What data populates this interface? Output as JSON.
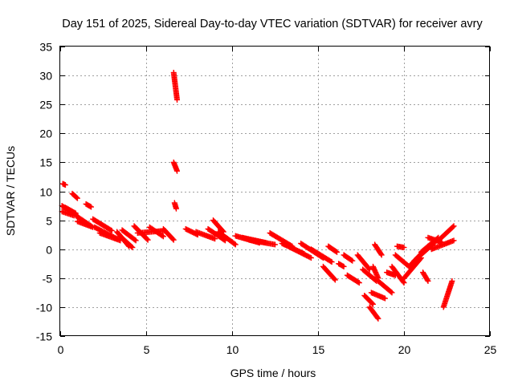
{
  "chart_data": {
    "type": "scatter",
    "title": "Day 151 of 2025, Sidereal Day-to-day VTEC variation (SDTVAR) for receiver avry",
    "xlabel": "GPS time / hours",
    "ylabel": "SDTVAR / TECUs",
    "xlim": [
      0,
      25
    ],
    "ylim": [
      -15,
      35
    ],
    "xticks": [
      "0",
      "5",
      "10",
      "15",
      "20",
      "25"
    ],
    "xtick_values": [
      0,
      5,
      10,
      15,
      20,
      25
    ],
    "yticks": [
      "-15",
      "-10",
      "-5",
      "0",
      "5",
      "10",
      "15",
      "20",
      "25",
      "30",
      "35"
    ],
    "ytick_values": [
      -15,
      -10,
      -5,
      0,
      5,
      10,
      15,
      20,
      25,
      30,
      35
    ],
    "grid": true,
    "marker": "+",
    "color": "#ff0000",
    "series": [
      {
        "name": "SDTVAR",
        "segments": [
          {
            "x": [
              0.1,
              0.9
            ],
            "y": [
              7.5,
              6.0
            ]
          },
          {
            "x": [
              0.1,
              0.8
            ],
            "y": [
              6.5,
              5.8
            ]
          },
          {
            "x": [
              0.3,
              0.9
            ],
            "y": [
              7.2,
              6.2
            ]
          },
          {
            "x": [
              0.15,
              0.3
            ],
            "y": [
              11.3,
              11.1
            ]
          },
          {
            "x": [
              0.7,
              1.0
            ],
            "y": [
              9.6,
              8.8
            ]
          },
          {
            "x": [
              0.9,
              1.8
            ],
            "y": [
              5.8,
              4.0
            ]
          },
          {
            "x": [
              1.0,
              1.9
            ],
            "y": [
              4.8,
              3.8
            ]
          },
          {
            "x": [
              1.5,
              1.8
            ],
            "y": [
              7.8,
              7.3
            ]
          },
          {
            "x": [
              1.9,
              3.0
            ],
            "y": [
              5.2,
              3.2
            ]
          },
          {
            "x": [
              2.0,
              3.3
            ],
            "y": [
              3.8,
              1.8
            ]
          },
          {
            "x": [
              2.3,
              3.5
            ],
            "y": [
              2.8,
              1.5
            ]
          },
          {
            "x": [
              3.3,
              4.0
            ],
            "y": [
              3.0,
              0.5
            ]
          },
          {
            "x": [
              3.5,
              4.2
            ],
            "y": [
              2.2,
              0.3
            ]
          },
          {
            "x": [
              3.6,
              4.4
            ],
            "y": [
              3.3,
              1.5
            ]
          },
          {
            "x": [
              4.3,
              5.1
            ],
            "y": [
              4.0,
              1.6
            ]
          },
          {
            "x": [
              4.5,
              6.1
            ],
            "y": [
              2.8,
              3.2
            ]
          },
          {
            "x": [
              5.2,
              6.0
            ],
            "y": [
              3.8,
              2.2
            ]
          },
          {
            "x": [
              6.0,
              6.6
            ],
            "y": [
              3.5,
              1.6
            ]
          },
          {
            "x": [
              6.6,
              6.8
            ],
            "y": [
              30.5,
              25.8
            ]
          },
          {
            "x": [
              6.6,
              6.8
            ],
            "y": [
              15.0,
              13.5
            ]
          },
          {
            "x": [
              6.65,
              6.75
            ],
            "y": [
              8.0,
              7.0
            ]
          },
          {
            "x": [
              7.3,
              8.0
            ],
            "y": [
              3.5,
              2.5
            ]
          },
          {
            "x": [
              7.9,
              9.0
            ],
            "y": [
              3.0,
              1.8
            ]
          },
          {
            "x": [
              8.6,
              9.6
            ],
            "y": [
              3.5,
              1.5
            ]
          },
          {
            "x": [
              8.9,
              9.5
            ],
            "y": [
              5.0,
              3.0
            ]
          },
          {
            "x": [
              9.2,
              10.2
            ],
            "y": [
              3.0,
              0.8
            ]
          },
          {
            "x": [
              10.2,
              11.6
            ],
            "y": [
              2.3,
              1.1
            ]
          },
          {
            "x": [
              10.6,
              12.0
            ],
            "y": [
              2.0,
              1.1
            ]
          },
          {
            "x": [
              11.0,
              12.5
            ],
            "y": [
              1.6,
              0.8
            ]
          },
          {
            "x": [
              12.2,
              13.5
            ],
            "y": [
              2.8,
              0.5
            ]
          },
          {
            "x": [
              12.9,
              14.2
            ],
            "y": [
              1.0,
              -0.8
            ]
          },
          {
            "x": [
              13.4,
              14.6
            ],
            "y": [
              0.3,
              -1.5
            ]
          },
          {
            "x": [
              14.0,
              15.3
            ],
            "y": [
              1.0,
              -1.5
            ]
          },
          {
            "x": [
              14.6,
              15.8
            ],
            "y": [
              0.0,
              -2.2
            ]
          },
          {
            "x": [
              15.3,
              16.0
            ],
            "y": [
              -3.0,
              -5.3
            ]
          },
          {
            "x": [
              15.6,
              16.1
            ],
            "y": [
              0.5,
              -0.5
            ]
          },
          {
            "x": [
              16.2,
              16.5
            ],
            "y": [
              -2.5,
              -3.0
            ]
          },
          {
            "x": [
              16.5,
              17.0
            ],
            "y": [
              -1.0,
              -2.0
            ]
          },
          {
            "x": [
              16.7,
              17.4
            ],
            "y": [
              -4.5,
              -5.8
            ]
          },
          {
            "x": [
              17.3,
              18.0
            ],
            "y": [
              -1.0,
              -3.5
            ]
          },
          {
            "x": [
              17.6,
              18.4
            ],
            "y": [
              -3.5,
              -5.5
            ]
          },
          {
            "x": [
              17.7,
              18.2
            ],
            "y": [
              -8.0,
              -9.5
            ]
          },
          {
            "x": [
              18.0,
              18.5
            ],
            "y": [
              -10.0,
              -12.0
            ]
          },
          {
            "x": [
              18.1,
              18.9
            ],
            "y": [
              -7.5,
              -8.5
            ]
          },
          {
            "x": [
              18.2,
              18.5
            ],
            "y": [
              -3.0,
              -5.0
            ]
          },
          {
            "x": [
              18.3,
              18.7
            ],
            "y": [
              0.8,
              -1.0
            ]
          },
          {
            "x": [
              18.5,
              19.3
            ],
            "y": [
              -5.5,
              -7.5
            ]
          },
          {
            "x": [
              19.0,
              19.5
            ],
            "y": [
              -4.0,
              -4.5
            ]
          },
          {
            "x": [
              19.3,
              20.0
            ],
            "y": [
              -3.0,
              -5.8
            ]
          },
          {
            "x": [
              19.5,
              20.3
            ],
            "y": [
              -1.0,
              -3.0
            ]
          },
          {
            "x": [
              19.6,
              20.0
            ],
            "y": [
              0.5,
              0.3
            ]
          },
          {
            "x": [
              20.0,
              21.0
            ],
            "y": [
              -5.0,
              -1.5
            ]
          },
          {
            "x": [
              20.3,
              21.4
            ],
            "y": [
              -3.0,
              0.5
            ]
          },
          {
            "x": [
              20.6,
              21.8
            ],
            "y": [
              -2.0,
              1.2
            ]
          },
          {
            "x": [
              21.0,
              22.0
            ],
            "y": [
              -0.5,
              2.0
            ]
          },
          {
            "x": [
              21.1,
              21.4
            ],
            "y": [
              -4.0,
              -5.5
            ]
          },
          {
            "x": [
              21.4,
              22.2
            ],
            "y": [
              2.0,
              1.2
            ]
          },
          {
            "x": [
              21.6,
              22.9
            ],
            "y": [
              0.0,
              1.5
            ]
          },
          {
            "x": [
              22.0,
              22.9
            ],
            "y": [
              1.5,
              4.0
            ]
          },
          {
            "x": [
              22.3,
              22.8
            ],
            "y": [
              -10.0,
              -5.5
            ]
          }
        ]
      }
    ]
  }
}
